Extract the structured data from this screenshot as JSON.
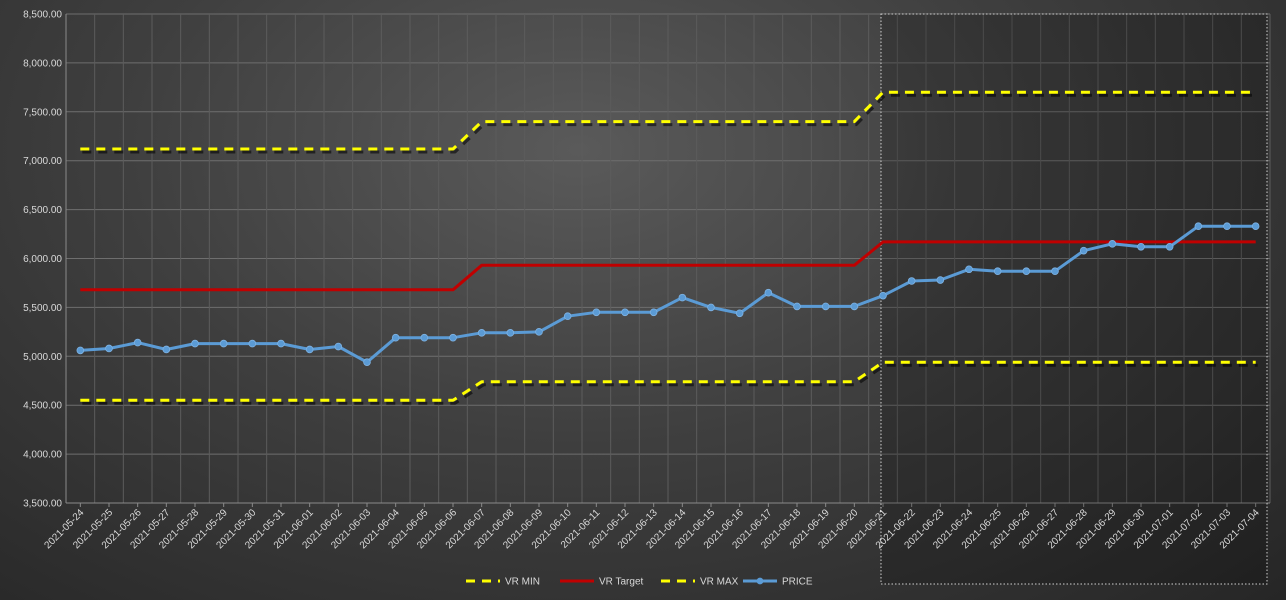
{
  "chart_data": {
    "type": "line",
    "title": "",
    "xlabel": "",
    "ylabel": "",
    "ylim": [
      3500,
      8500
    ],
    "y_ticks": [
      "3,500.00",
      "4,000.00",
      "4,500.00",
      "5,000.00",
      "5,500.00",
      "6,000.00",
      "6,500.00",
      "7,000.00",
      "7,500.00",
      "8,000.00",
      "8,500.00"
    ],
    "grid": true,
    "legend_position": "bottom",
    "highlight_region": {
      "from": "2021-06-21",
      "to": "2021-07-04",
      "style": "dotted-box"
    },
    "categories": [
      "2021-05-24",
      "2021-05-25",
      "2021-05-26",
      "2021-05-27",
      "2021-05-28",
      "2021-05-29",
      "2021-05-30",
      "2021-05-31",
      "2021-06-01",
      "2021-06-02",
      "2021-06-03",
      "2021-06-04",
      "2021-06-05",
      "2021-06-06",
      "2021-06-07",
      "2021-06-08",
      "2021-06-09",
      "2021-06-10",
      "2021-06-11",
      "2021-06-12",
      "2021-06-13",
      "2021-06-14",
      "2021-06-15",
      "2021-06-16",
      "2021-06-17",
      "2021-06-18",
      "2021-06-19",
      "2021-06-20",
      "2021-06-21",
      "2021-06-22",
      "2021-06-23",
      "2021-06-24",
      "2021-06-25",
      "2021-06-26",
      "2021-06-27",
      "2021-06-28",
      "2021-06-29",
      "2021-06-30",
      "2021-07-01",
      "2021-07-02",
      "2021-07-03",
      "2021-07-04"
    ],
    "series": [
      {
        "name": "VR MIN",
        "color": "#ffff00",
        "style": "dashed",
        "values": [
          4550,
          4550,
          4550,
          4550,
          4550,
          4550,
          4550,
          4550,
          4550,
          4550,
          4550,
          4550,
          4550,
          4550,
          4740,
          4740,
          4740,
          4740,
          4740,
          4740,
          4740,
          4740,
          4740,
          4740,
          4740,
          4740,
          4740,
          4740,
          4940,
          4940,
          4940,
          4940,
          4940,
          4940,
          4940,
          4940,
          4940,
          4940,
          4940,
          4940,
          4940,
          4940
        ]
      },
      {
        "name": "VR Target",
        "color": "#c00000",
        "style": "solid",
        "values": [
          5680,
          5680,
          5680,
          5680,
          5680,
          5680,
          5680,
          5680,
          5680,
          5680,
          5680,
          5680,
          5680,
          5680,
          5930,
          5930,
          5930,
          5930,
          5930,
          5930,
          5930,
          5930,
          5930,
          5930,
          5930,
          5930,
          5930,
          5930,
          6170,
          6170,
          6170,
          6170,
          6170,
          6170,
          6170,
          6170,
          6170,
          6170,
          6170,
          6170,
          6170,
          6170
        ]
      },
      {
        "name": "VR MAX",
        "color": "#ffff00",
        "style": "dashed",
        "values": [
          7120,
          7120,
          7120,
          7120,
          7120,
          7120,
          7120,
          7120,
          7120,
          7120,
          7120,
          7120,
          7120,
          7120,
          7400,
          7400,
          7400,
          7400,
          7400,
          7400,
          7400,
          7400,
          7400,
          7400,
          7400,
          7400,
          7400,
          7400,
          7700,
          7700,
          7700,
          7700,
          7700,
          7700,
          7700,
          7700,
          7700,
          7700,
          7700,
          7700,
          7700,
          7700
        ]
      },
      {
        "name": "PRICE",
        "color": "#5b9bd5",
        "style": "solid-markers",
        "values": [
          5060,
          5080,
          5140,
          5070,
          5130,
          5130,
          5130,
          5130,
          5070,
          5100,
          4940,
          5190,
          5190,
          5190,
          5240,
          5240,
          5250,
          5410,
          5450,
          5450,
          5450,
          5600,
          5500,
          5440,
          5650,
          5510,
          5510,
          5510,
          5620,
          5770,
          5780,
          5890,
          5870,
          5870,
          5870,
          6080,
          6150,
          6120,
          6120,
          6330,
          6330,
          6330
        ]
      }
    ]
  }
}
